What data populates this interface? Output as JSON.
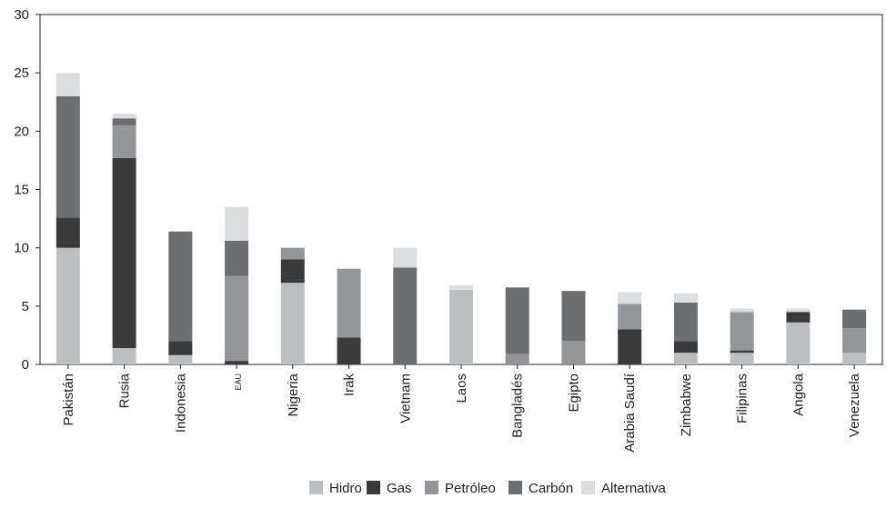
{
  "chart_data": {
    "type": "bar",
    "stacked": true,
    "categories": [
      "Pakistán",
      "Rusia",
      "Indonesia",
      "EAU",
      "Nigeria",
      "Irak",
      "Vietnam",
      "Laos",
      "Bangladés",
      "Egipto",
      "Arabia Saudí",
      "Zimbabwe",
      "Filipinas",
      "Angola",
      "Venezuela"
    ],
    "series": [
      {
        "name": "Hidro",
        "color": "#bcbec0",
        "values": [
          10.0,
          1.4,
          0.8,
          0.0,
          7.0,
          0.0,
          0.0,
          6.4,
          0.0,
          0.0,
          0.0,
          1.0,
          1.0,
          3.6,
          1.0
        ]
      },
      {
        "name": "Gas",
        "color": "#3a3a3a",
        "values": [
          2.6,
          16.3,
          1.2,
          0.3,
          2.0,
          2.3,
          0.0,
          0.0,
          0.0,
          0.0,
          3.0,
          1.0,
          0.2,
          0.9,
          0.0
        ]
      },
      {
        "name": "Petróleo",
        "color": "#939598",
        "values": [
          0.0,
          2.8,
          0.0,
          7.3,
          1.0,
          5.9,
          0.0,
          0.0,
          0.9,
          2.0,
          2.2,
          0.0,
          3.3,
          0.0,
          2.1
        ]
      },
      {
        "name": "Carbón",
        "color": "#6d6e71",
        "values": [
          10.4,
          0.6,
          9.4,
          3.0,
          0.0,
          0.0,
          8.3,
          0.0,
          5.7,
          4.3,
          0.0,
          3.3,
          0.0,
          0.0,
          1.6
        ]
      },
      {
        "name": "Alternativa",
        "color": "#dcdddf",
        "values": [
          2.0,
          0.4,
          0.0,
          2.9,
          0.0,
          0.0,
          1.7,
          0.4,
          0.0,
          0.0,
          1.0,
          0.8,
          0.3,
          0.3,
          0.0
        ]
      }
    ],
    "ylim": [
      0,
      30
    ],
    "yticks": [
      0,
      5,
      10,
      15,
      20,
      25,
      30
    ],
    "xlabel": "",
    "ylabel": "",
    "title": "",
    "legend_position": "bottom-center",
    "grid": false
  }
}
